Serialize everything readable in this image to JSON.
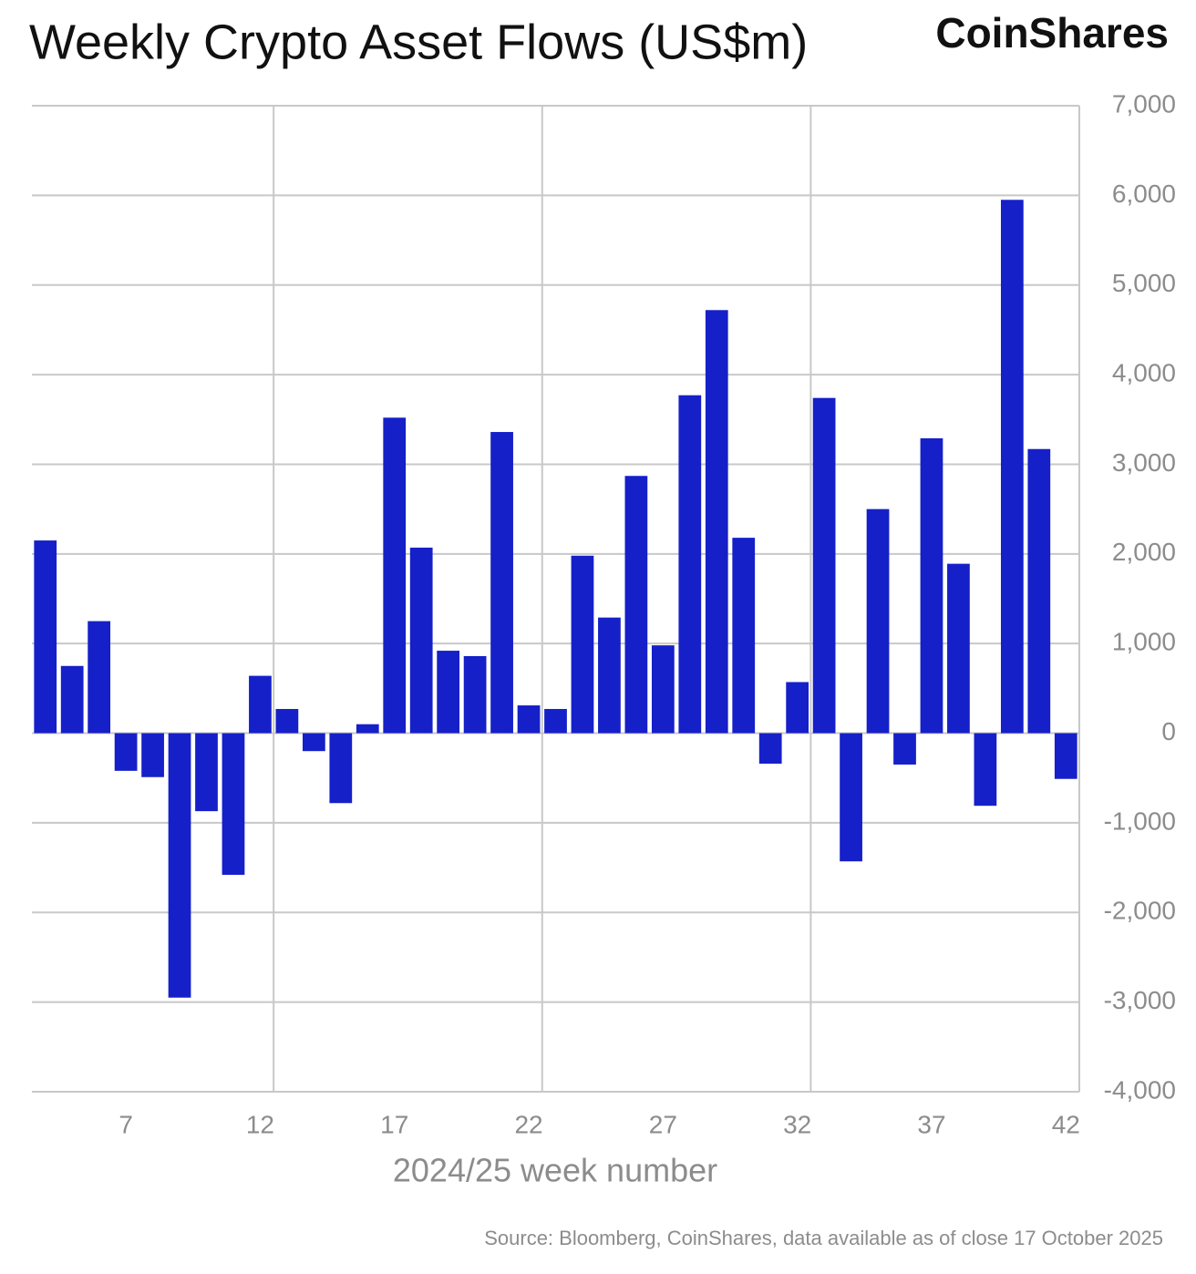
{
  "chart_data": {
    "type": "bar",
    "title": "Weekly Crypto Asset Flows (US$m)",
    "brand": "CoinShares",
    "x_label": "2024/25 week number",
    "source": "Source: Bloomberg, CoinShares, data available as of close 17 October 2025",
    "categories": [
      null,
      null,
      null,
      "7",
      null,
      null,
      null,
      null,
      "12",
      null,
      null,
      null,
      null,
      "17",
      null,
      null,
      null,
      null,
      "22",
      null,
      null,
      null,
      null,
      "27",
      null,
      null,
      null,
      null,
      "32",
      null,
      null,
      null,
      null,
      "37",
      null,
      null,
      null,
      null,
      "42"
    ],
    "values": [
      2150,
      750,
      1250,
      -420,
      -490,
      -2950,
      -870,
      -1580,
      640,
      270,
      -200,
      -780,
      100,
      3520,
      2070,
      920,
      860,
      3360,
      310,
      270,
      1980,
      1290,
      2870,
      980,
      3770,
      4720,
      2180,
      -340,
      570,
      3740,
      -1430,
      2500,
      -350,
      3290,
      1890,
      -810,
      5950,
      3170,
      -510
    ],
    "color": "#1520c8",
    "ylim": [
      -4000,
      7000
    ],
    "yticks": [
      {
        "value": -4000,
        "label": "-4,000"
      },
      {
        "value": -3000,
        "label": "-3,000"
      },
      {
        "value": -2000,
        "label": "-2,000"
      },
      {
        "value": -1000,
        "label": "-1,000"
      },
      0,
      {
        "value": 1000,
        "label": "1,000"
      },
      {
        "value": 2000,
        "label": "2,000"
      },
      {
        "value": 3000,
        "label": "3,000"
      },
      {
        "value": 4000,
        "label": "4,000"
      },
      {
        "value": 5000,
        "label": "5,000"
      },
      {
        "value": 6000,
        "label": "6,000"
      },
      {
        "value": 7000,
        "label": "7,000"
      }
    ],
    "grid": true
  }
}
